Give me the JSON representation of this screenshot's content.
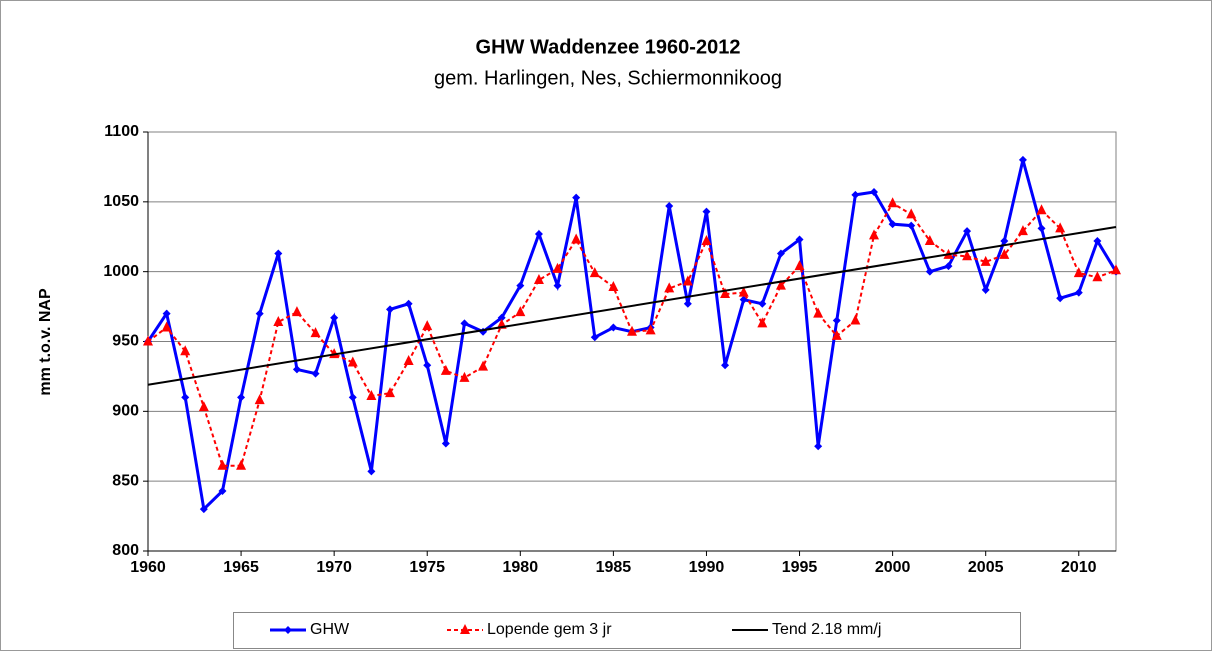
{
  "chart_data": {
    "type": "line",
    "title": "GHW Waddenzee 1960-2012",
    "subtitle": "gem. Harlingen, Nes, Schiermonnikoog",
    "y_label": "mm t.o.v. NAP",
    "x": [
      1960,
      1961,
      1962,
      1963,
      1964,
      1965,
      1966,
      1967,
      1968,
      1969,
      1970,
      1971,
      1972,
      1973,
      1974,
      1975,
      1976,
      1977,
      1978,
      1979,
      1980,
      1981,
      1982,
      1983,
      1984,
      1985,
      1986,
      1987,
      1988,
      1989,
      1990,
      1991,
      1992,
      1993,
      1994,
      1995,
      1996,
      1997,
      1998,
      1999,
      2000,
      2001,
      2002,
      2003,
      2004,
      2005,
      2006,
      2007,
      2008,
      2009,
      2010,
      2011,
      2012
    ],
    "series": [
      {
        "name": "GHW",
        "color": "#0000ff",
        "marker": "diamond",
        "dash": false,
        "values": [
          950,
          970,
          910,
          830,
          843,
          910,
          970,
          1013,
          930,
          927,
          967,
          910,
          857,
          973,
          977,
          933,
          877,
          963,
          957,
          967,
          990,
          1027,
          990,
          1053,
          953,
          960,
          957,
          960,
          1047,
          977,
          1043,
          933,
          980,
          977,
          1013,
          1023,
          875,
          965,
          1055,
          1057,
          1034,
          1033,
          1000,
          1004,
          1029,
          987,
          1022,
          1080,
          1031,
          981,
          985,
          1022,
          1000
        ]
      },
      {
        "name": "Lopende gem 3 jr",
        "color": "#ff0000",
        "marker": "triangle",
        "dash": true,
        "values": [
          950,
          960,
          943,
          903,
          861,
          861,
          908,
          964,
          971,
          956,
          941,
          935,
          911,
          913,
          936,
          961,
          929,
          924,
          932,
          962,
          971,
          994,
          1002,
          1023,
          999,
          989,
          957,
          958,
          988,
          993,
          1022,
          984,
          985,
          963,
          990,
          1004,
          970,
          954,
          965,
          1026,
          1049,
          1041,
          1022,
          1012,
          1011,
          1007,
          1012,
          1029,
          1044,
          1031,
          999,
          996,
          1001
        ]
      },
      {
        "name": "Tend 2.18 mm/j",
        "color": "#000000",
        "marker": "none",
        "dash": false,
        "x": [
          1960,
          2012
        ],
        "values": [
          919,
          1032
        ]
      }
    ],
    "xlim": [
      1960,
      2012
    ],
    "xticks": [
      1960,
      1965,
      1970,
      1975,
      1980,
      1985,
      1990,
      1995,
      2000,
      2005,
      2010
    ],
    "ylim": [
      800,
      1100
    ],
    "yticks": [
      800,
      850,
      900,
      950,
      1000,
      1050,
      1100
    ],
    "grid": true,
    "legend": "bottom"
  }
}
